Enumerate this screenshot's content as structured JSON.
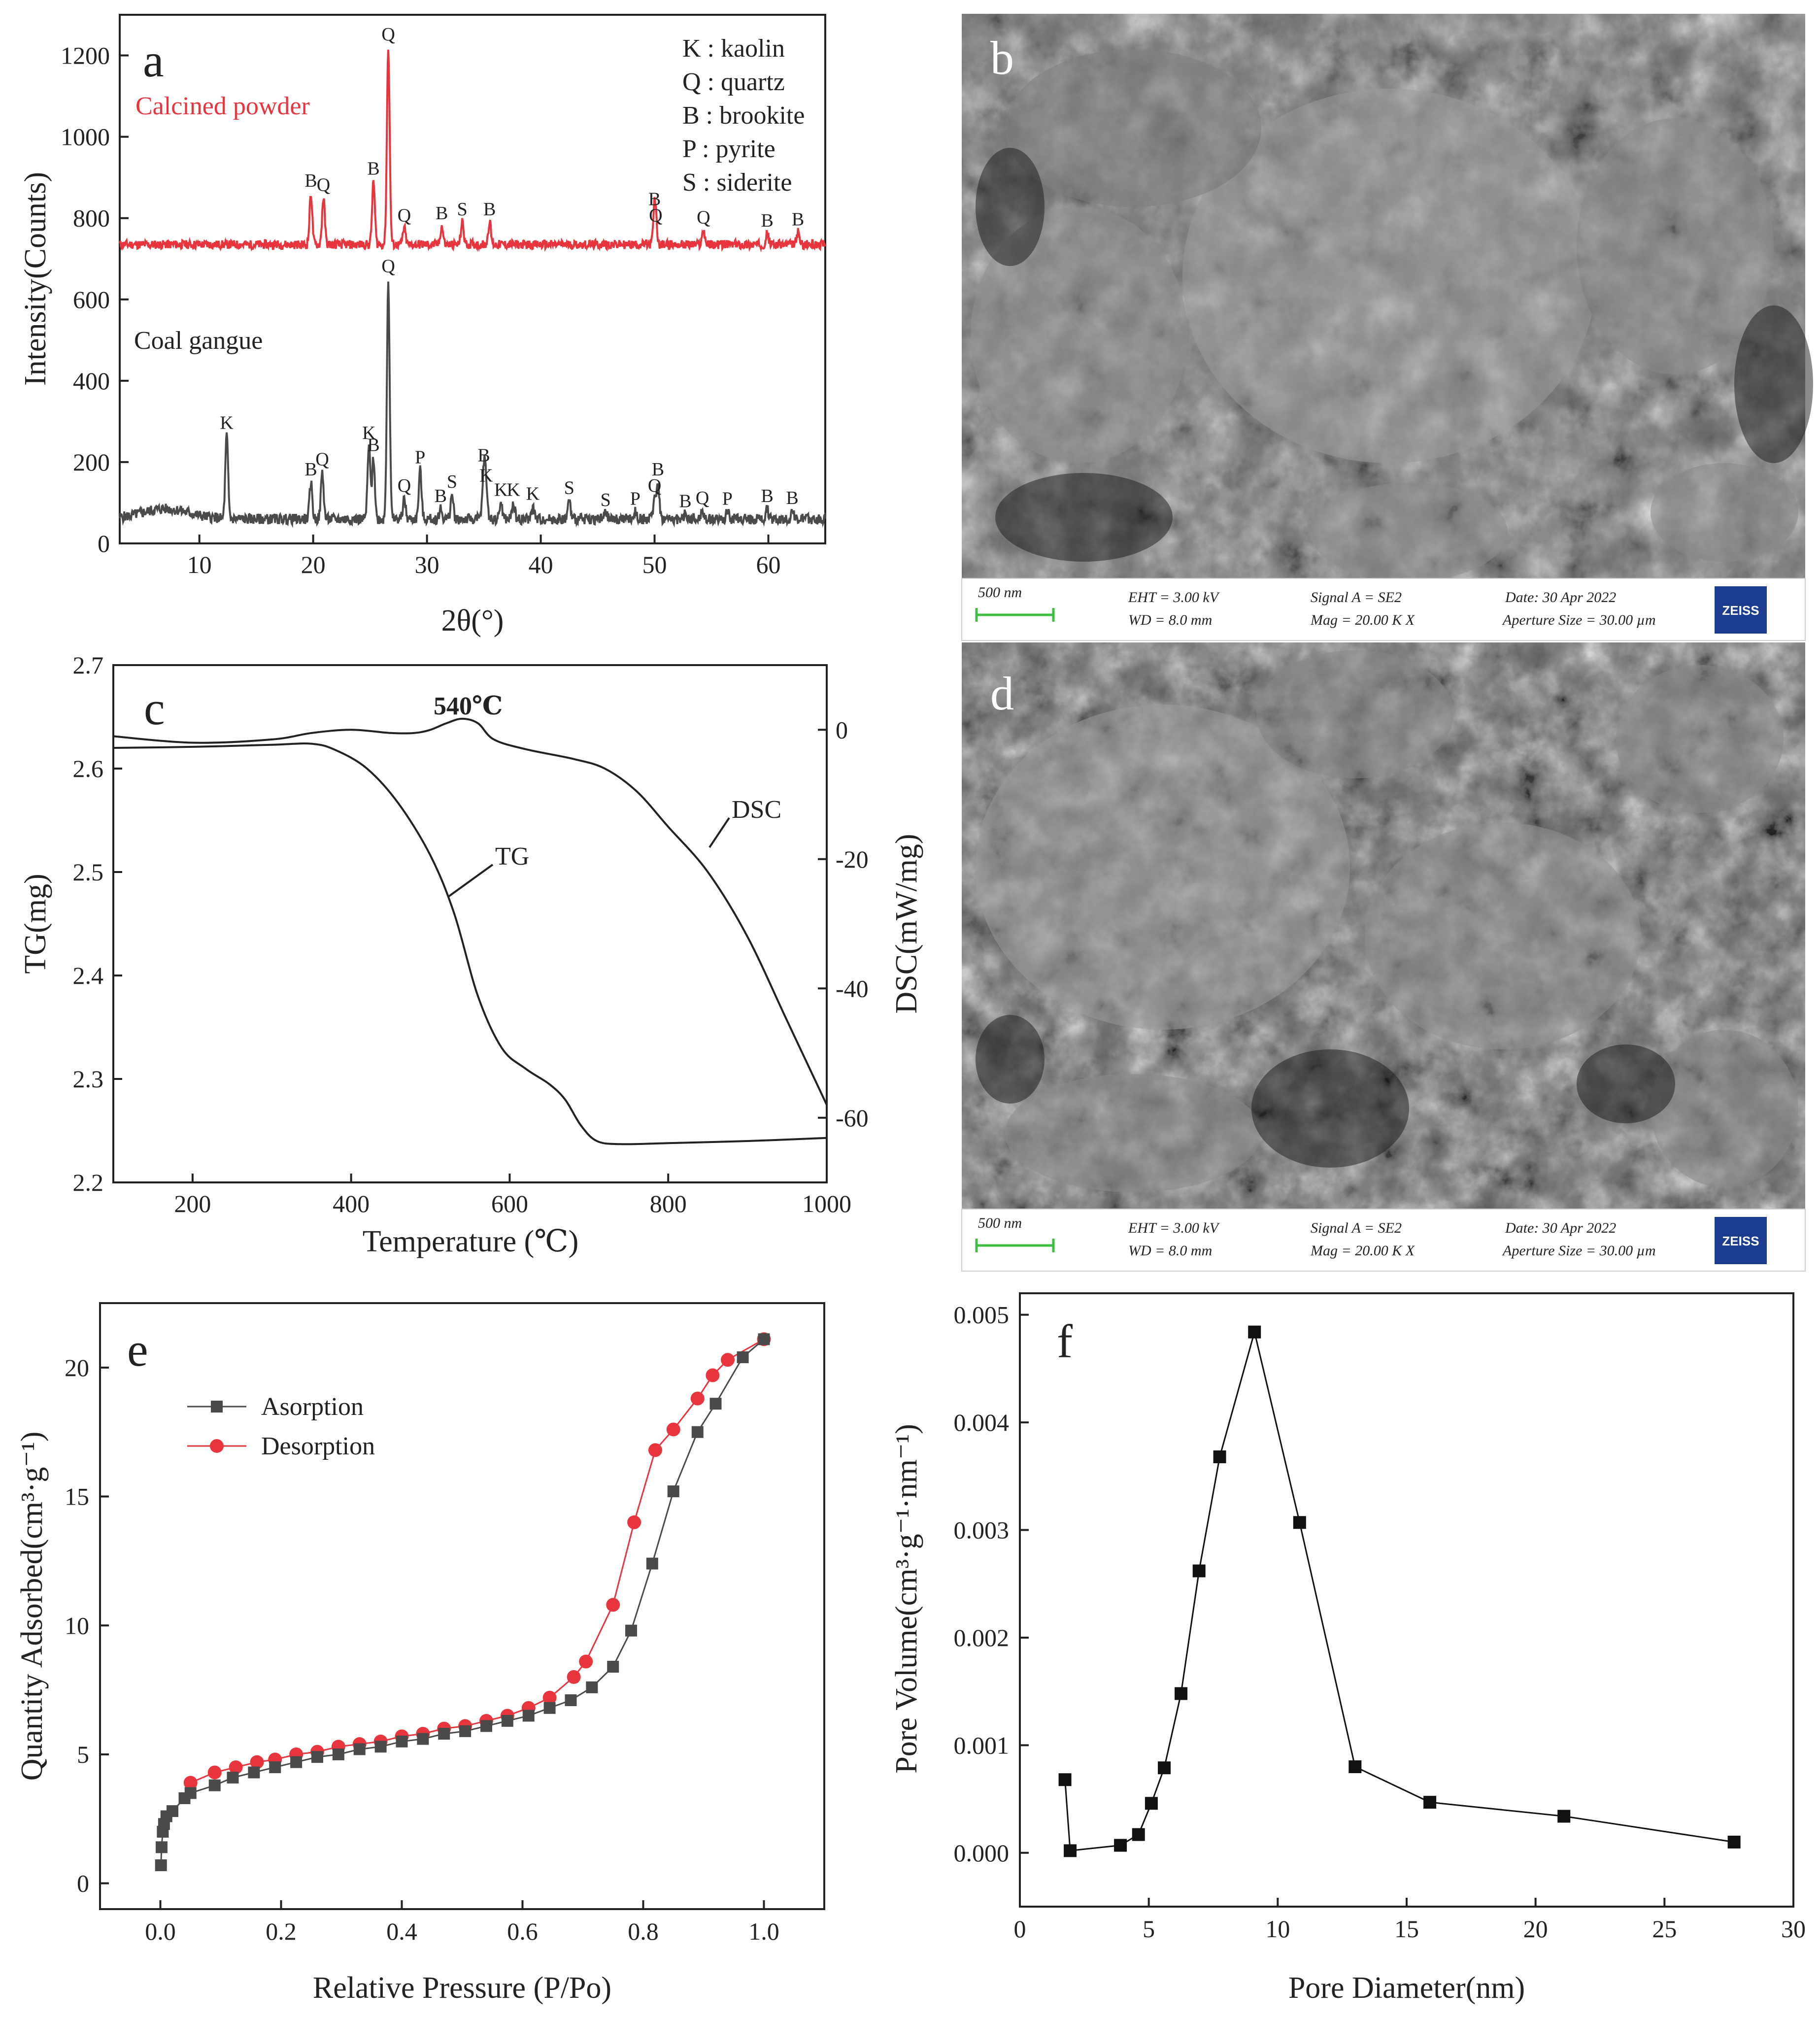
{
  "chart_data": [
    {
      "panel": "a",
      "type": "line",
      "xlabel": "2θ(°)",
      "ylabel": "Intensity(Counts)",
      "xlim": [
        3,
        65
      ],
      "ylim": [
        0,
        1300
      ],
      "xticks": [
        "10",
        "20",
        "30",
        "40",
        "50",
        "60"
      ],
      "yticks": [
        "0",
        "200",
        "400",
        "600",
        "800",
        "1000",
        "1200"
      ],
      "legend": [
        "K : kaolin",
        "Q : quartz",
        "B : brookite",
        "P : pyrite",
        "S : siderite"
      ],
      "series": [
        {
          "name": "Calcined powder",
          "color": "#e8343c",
          "baseline": 735,
          "peaks": [
            {
              "x": 19.8,
              "y": 860,
              "label": "B"
            },
            {
              "x": 20.9,
              "y": 850,
              "label": "Q"
            },
            {
              "x": 25.3,
              "y": 890,
              "label": "B"
            },
            {
              "x": 26.6,
              "y": 1220,
              "label": "Q"
            },
            {
              "x": 28.0,
              "y": 775,
              "label": "Q"
            },
            {
              "x": 31.3,
              "y": 780,
              "label": "B"
            },
            {
              "x": 33.1,
              "y": 790,
              "label": "S"
            },
            {
              "x": 35.5,
              "y": 790,
              "label": "B"
            },
            {
              "x": 50.1,
              "y": 775,
              "label": "Q"
            },
            {
              "x": 50.0,
              "y": 815,
              "label": "B"
            },
            {
              "x": 54.3,
              "y": 770,
              "label": "Q"
            },
            {
              "x": 59.9,
              "y": 762,
              "label": "B"
            },
            {
              "x": 62.6,
              "y": 765,
              "label": "B"
            }
          ]
        },
        {
          "name": "Coal gangue",
          "color": "#4a4a4a",
          "baseline": 60,
          "peaks": [
            {
              "x": 12.4,
              "y": 265,
              "label": "K"
            },
            {
              "x": 19.8,
              "y": 150,
              "label": "B"
            },
            {
              "x": 20.8,
              "y": 175,
              "label": "Q"
            },
            {
              "x": 24.9,
              "y": 240,
              "label": "K"
            },
            {
              "x": 25.3,
              "y": 210,
              "label": "B"
            },
            {
              "x": 26.6,
              "y": 650,
              "label": "Q"
            },
            {
              "x": 28.0,
              "y": 110,
              "label": "Q"
            },
            {
              "x": 29.4,
              "y": 180,
              "label": "P"
            },
            {
              "x": 31.2,
              "y": 85,
              "label": "B"
            },
            {
              "x": 32.2,
              "y": 120,
              "label": "S"
            },
            {
              "x": 35.0,
              "y": 185,
              "label": "B"
            },
            {
              "x": 35.2,
              "y": 135,
              "label": "K"
            },
            {
              "x": 36.5,
              "y": 100,
              "label": "K"
            },
            {
              "x": 37.6,
              "y": 100,
              "label": "K"
            },
            {
              "x": 39.3,
              "y": 90,
              "label": "K"
            },
            {
              "x": 42.5,
              "y": 105,
              "label": "S"
            },
            {
              "x": 45.7,
              "y": 75,
              "label": "S"
            },
            {
              "x": 48.3,
              "y": 78,
              "label": "P"
            },
            {
              "x": 50.0,
              "y": 110,
              "label": "Q"
            },
            {
              "x": 50.3,
              "y": 150,
              "label": "B"
            },
            {
              "x": 52.7,
              "y": 72,
              "label": "B"
            },
            {
              "x": 54.2,
              "y": 80,
              "label": "Q"
            },
            {
              "x": 56.4,
              "y": 78,
              "label": "P"
            },
            {
              "x": 59.9,
              "y": 85,
              "label": "B"
            },
            {
              "x": 62.1,
              "y": 80,
              "label": "B"
            }
          ]
        }
      ]
    },
    {
      "panel": "c",
      "type": "line",
      "xlabel": "Temperature (℃)",
      "ylabel": "TG(mg)",
      "y2label": "DSC(mW/mg)",
      "xlim": [
        100,
        1000
      ],
      "ylim": [
        2.2,
        2.7
      ],
      "y2lim": [
        -70,
        10
      ],
      "xticks": [
        "200",
        "400",
        "600",
        "800",
        "1000"
      ],
      "yticks": [
        "2.2",
        "2.3",
        "2.4",
        "2.5",
        "2.6",
        "2.7"
      ],
      "y2ticks": [
        "0",
        "-20",
        "-40",
        "-60"
      ],
      "annotation": "540℃",
      "series": [
        {
          "name": "TG",
          "axis": "left",
          "x": [
            100,
            200,
            300,
            350,
            380,
            420,
            460,
            500,
            530,
            560,
            590,
            620,
            650,
            670,
            690,
            710,
            740,
            800,
            900,
            1000
          ],
          "y": [
            2.62,
            2.621,
            2.623,
            2.624,
            2.618,
            2.6,
            2.566,
            2.516,
            2.46,
            2.38,
            2.33,
            2.31,
            2.295,
            2.28,
            2.255,
            2.24,
            2.237,
            2.238,
            2.24,
            2.243
          ]
        },
        {
          "name": "DSC",
          "axis": "right",
          "x": [
            100,
            200,
            300,
            350,
            400,
            450,
            480,
            500,
            520,
            540,
            560,
            580,
            620,
            680,
            720,
            760,
            800,
            850,
            900,
            950,
            1000
          ],
          "y": [
            -1.0,
            -2.0,
            -1.5,
            -0.5,
            0.0,
            -0.5,
            -0.5,
            0.0,
            1.0,
            1.7,
            1.0,
            -1.5,
            -3.0,
            -4.5,
            -6.0,
            -9.5,
            -15.0,
            -22.0,
            -32.0,
            -45.0,
            -58.0
          ]
        }
      ]
    },
    {
      "panel": "e",
      "type": "line",
      "xlabel": "Relative Pressure (P/Po)",
      "ylabel": "Quantity Adsorbed(cm³·g⁻¹)",
      "xlim": [
        -0.1,
        1.1
      ],
      "ylim": [
        -1,
        22.5
      ],
      "xticks": [
        "0.0",
        "0.2",
        "0.4",
        "0.6",
        "0.8",
        "1.0"
      ],
      "yticks": [
        "0",
        "5",
        "10",
        "15",
        "20"
      ],
      "series": [
        {
          "name": "Asorption",
          "color": "#4a4a4a",
          "marker": "square",
          "x": [
            0.001,
            0.002,
            0.004,
            0.006,
            0.01,
            0.02,
            0.04,
            0.05,
            0.09,
            0.12,
            0.155,
            0.19,
            0.225,
            0.26,
            0.295,
            0.33,
            0.365,
            0.4,
            0.435,
            0.47,
            0.505,
            0.54,
            0.575,
            0.61,
            0.645,
            0.68,
            0.715,
            0.75,
            0.78,
            0.815,
            0.85,
            0.89,
            0.92,
            0.965,
            1.0
          ],
          "y": [
            0.7,
            1.4,
            2.0,
            2.3,
            2.6,
            2.8,
            3.3,
            3.5,
            3.8,
            4.1,
            4.3,
            4.5,
            4.7,
            4.9,
            5.0,
            5.2,
            5.3,
            5.5,
            5.6,
            5.8,
            5.9,
            6.1,
            6.3,
            6.5,
            6.8,
            7.1,
            7.6,
            8.4,
            9.8,
            12.4,
            15.2,
            17.5,
            18.6,
            20.4,
            21.1
          ]
        },
        {
          "name": "Desorption",
          "color": "#e8343c",
          "marker": "circle",
          "x": [
            0.05,
            0.09,
            0.125,
            0.16,
            0.19,
            0.225,
            0.26,
            0.295,
            0.33,
            0.365,
            0.4,
            0.435,
            0.47,
            0.505,
            0.54,
            0.575,
            0.61,
            0.645,
            0.685,
            0.705,
            0.75,
            0.785,
            0.82,
            0.85,
            0.89,
            0.915,
            0.94,
            1.0
          ],
          "y": [
            3.9,
            4.3,
            4.5,
            4.7,
            4.8,
            5.0,
            5.1,
            5.3,
            5.4,
            5.5,
            5.7,
            5.8,
            6.0,
            6.1,
            6.3,
            6.5,
            6.8,
            7.2,
            8.0,
            8.6,
            10.8,
            14.0,
            16.8,
            17.6,
            18.8,
            19.7,
            20.3,
            21.1
          ]
        }
      ]
    },
    {
      "panel": "f",
      "type": "line",
      "xlabel": "Pore Diameter(nm)",
      "ylabel": "Pore Volume(cm³·g⁻¹·nm⁻¹)",
      "xlim": [
        0,
        30
      ],
      "ylim": [
        -0.0005,
        0.0052
      ],
      "xticks": [
        "0",
        "5",
        "10",
        "15",
        "20",
        "25",
        "30"
      ],
      "yticks": [
        "0.000",
        "0.001",
        "0.002",
        "0.003",
        "0.004",
        "0.005"
      ],
      "series": [
        {
          "name": "Pore Volume",
          "color": "#111111",
          "marker": "square",
          "x": [
            1.75,
            1.95,
            3.9,
            4.6,
            5.1,
            5.6,
            6.25,
            6.95,
            7.75,
            9.1,
            10.85,
            13.0,
            15.9,
            21.1,
            27.7
          ],
          "y": [
            0.00068,
            2e-05,
            7e-05,
            0.00017,
            0.00046,
            0.00079,
            0.00148,
            0.00262,
            0.00368,
            0.00484,
            0.00307,
            0.0008,
            0.00047,
            0.00034,
            0.0001
          ]
        }
      ]
    }
  ],
  "panels": {
    "a": {
      "letter": "a",
      "calcined_label": "Calcined powder",
      "coal_label": "Coal gangue",
      "legend": [
        "K : kaolin",
        "Q : quartz",
        "B : brookite",
        "P : pyrite",
        "S : siderite"
      ]
    },
    "b": {
      "letter": "b"
    },
    "c": {
      "letter": "c",
      "tg_label": "TG",
      "dsc_label": "DSC"
    },
    "d": {
      "letter": "d"
    },
    "e": {
      "letter": "e"
    },
    "f": {
      "letter": "f"
    }
  },
  "sem_info": {
    "scale": "500 nm",
    "eht": "EHT =  3.00 kV",
    "wd": "WD =  8.0 mm",
    "signal": "Signal A = SE2",
    "mag": "Mag =   20.00 K X",
    "date": "Date: 30 Apr 2022",
    "aperture": "Aperture Size = 30.00 µm",
    "brand": "ZEISS"
  },
  "colors": {
    "calcined": "#e8343c",
    "coal": "#4a4a4a",
    "sem_bar_bg": "#ffffff",
    "scale_bar": "#3fbf3f",
    "zeiss": "#1c3d8f"
  }
}
